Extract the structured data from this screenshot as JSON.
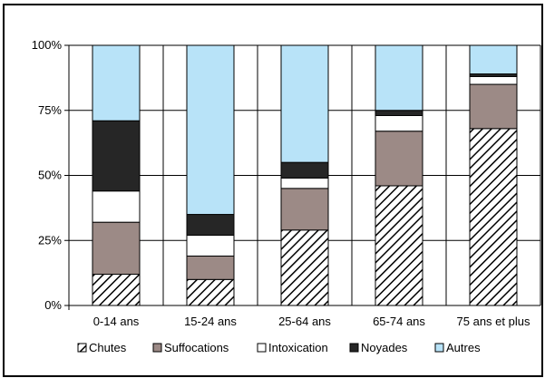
{
  "chart_data": {
    "type": "bar",
    "stacked": true,
    "percent": true,
    "categories": [
      "0-14 ans",
      "15-24 ans",
      "25-64 ans",
      "65-74 ans",
      "75 ans et plus"
    ],
    "series": [
      {
        "name": "Chutes",
        "values": [
          12,
          10,
          29,
          46,
          68
        ],
        "color": "#ffffff",
        "pattern": "diagonal-hatch"
      },
      {
        "name": "Suffocations",
        "values": [
          20,
          9,
          16,
          21,
          17
        ],
        "color": "#9c8a86"
      },
      {
        "name": "Intoxication",
        "values": [
          12,
          8,
          4,
          6,
          3
        ],
        "color": "#ffffff"
      },
      {
        "name": "Noyades",
        "values": [
          27,
          8,
          6,
          2,
          1
        ],
        "color": "#262626"
      },
      {
        "name": "Autres",
        "values": [
          29,
          65,
          45,
          25,
          11
        ],
        "color": "#b8e3f8"
      }
    ],
    "yticks": [
      "0%",
      "25%",
      "50%",
      "75%",
      "100%"
    ],
    "ylim": [
      0,
      100
    ],
    "grid": true,
    "legend": "bottom",
    "title": "",
    "xlabel": "",
    "ylabel": ""
  }
}
